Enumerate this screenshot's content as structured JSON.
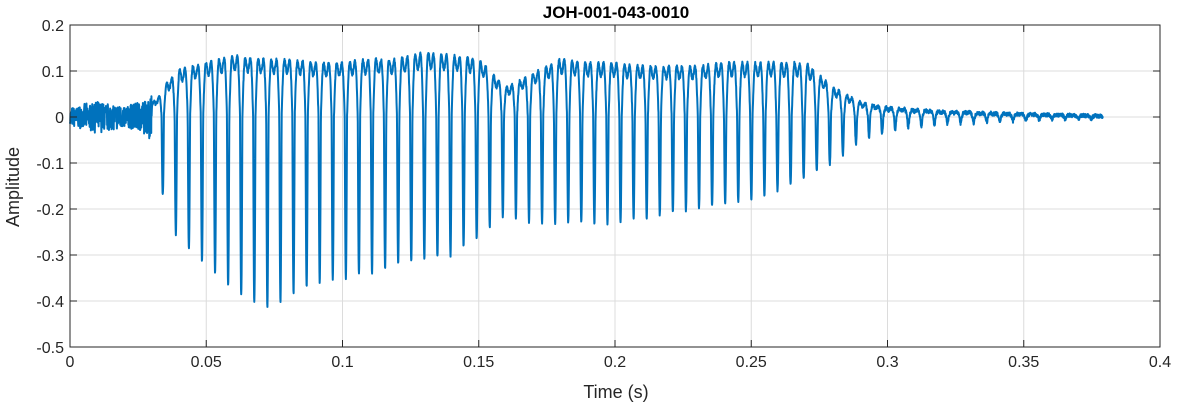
{
  "chart_data": {
    "type": "line",
    "title": "JOH-001-043-0010",
    "xlabel": "Time (s)",
    "ylabel": "Amplitude",
    "xlim": [
      0,
      0.4
    ],
    "ylim": [
      -0.5,
      0.2
    ],
    "xticks": [
      0,
      0.05,
      0.1,
      0.15,
      0.2,
      0.25,
      0.3,
      0.35,
      0.4
    ],
    "xtick_labels": [
      "0",
      "0.05",
      "0.1",
      "0.15",
      "0.2",
      "0.25",
      "0.3",
      "0.35",
      "0.4"
    ],
    "yticks": [
      0.2,
      0.1,
      0,
      -0.1,
      -0.2,
      -0.3,
      -0.4,
      -0.5
    ],
    "ytick_labels": [
      "0.2",
      "0.1",
      "0",
      "-0.1",
      "-0.2",
      "-0.3",
      "-0.4",
      "-0.5"
    ],
    "grid": true,
    "legend": "none",
    "line_color": "#0072BD",
    "series": [
      {
        "x_start": 0,
        "x_end": 0.379,
        "envelope": {
          "x": [
            0,
            0.01,
            0.02,
            0.028,
            0.032,
            0.035,
            0.04,
            0.05,
            0.06,
            0.07,
            0.075,
            0.08,
            0.09,
            0.1,
            0.11,
            0.12,
            0.13,
            0.14,
            0.15,
            0.16,
            0.17,
            0.18,
            0.19,
            0.2,
            0.21,
            0.22,
            0.23,
            0.24,
            0.25,
            0.26,
            0.27,
            0.28,
            0.29,
            0.3,
            0.31,
            0.32,
            0.33,
            0.34,
            0.35,
            0.36,
            0.37,
            0.379
          ],
          "max": [
            0.02,
            0.03,
            0.03,
            0.03,
            0.05,
            0.09,
            0.13,
            0.15,
            0.17,
            0.16,
            0.16,
            0.16,
            0.15,
            0.15,
            0.16,
            0.16,
            0.18,
            0.17,
            0.16,
            0.08,
            0.12,
            0.16,
            0.15,
            0.15,
            0.14,
            0.14,
            0.14,
            0.15,
            0.15,
            0.15,
            0.15,
            0.08,
            0.04,
            0.025,
            0.02,
            0.016,
            0.013,
            0.01,
            0.008,
            0.006,
            0.005,
            0.003
          ],
          "min": [
            -0.02,
            -0.04,
            -0.02,
            -0.05,
            -0.1,
            -0.2,
            -0.27,
            -0.32,
            -0.38,
            -0.41,
            -0.41,
            -0.39,
            -0.36,
            -0.35,
            -0.34,
            -0.32,
            -0.31,
            -0.3,
            -0.26,
            -0.21,
            -0.23,
            -0.23,
            -0.23,
            -0.23,
            -0.22,
            -0.21,
            -0.2,
            -0.19,
            -0.18,
            -0.16,
            -0.13,
            -0.1,
            -0.05,
            -0.03,
            -0.02,
            -0.016,
            -0.013,
            -0.01,
            -0.008,
            -0.006,
            -0.005,
            -0.003
          ]
        },
        "dominant_period_s": 0.0048
      }
    ]
  }
}
